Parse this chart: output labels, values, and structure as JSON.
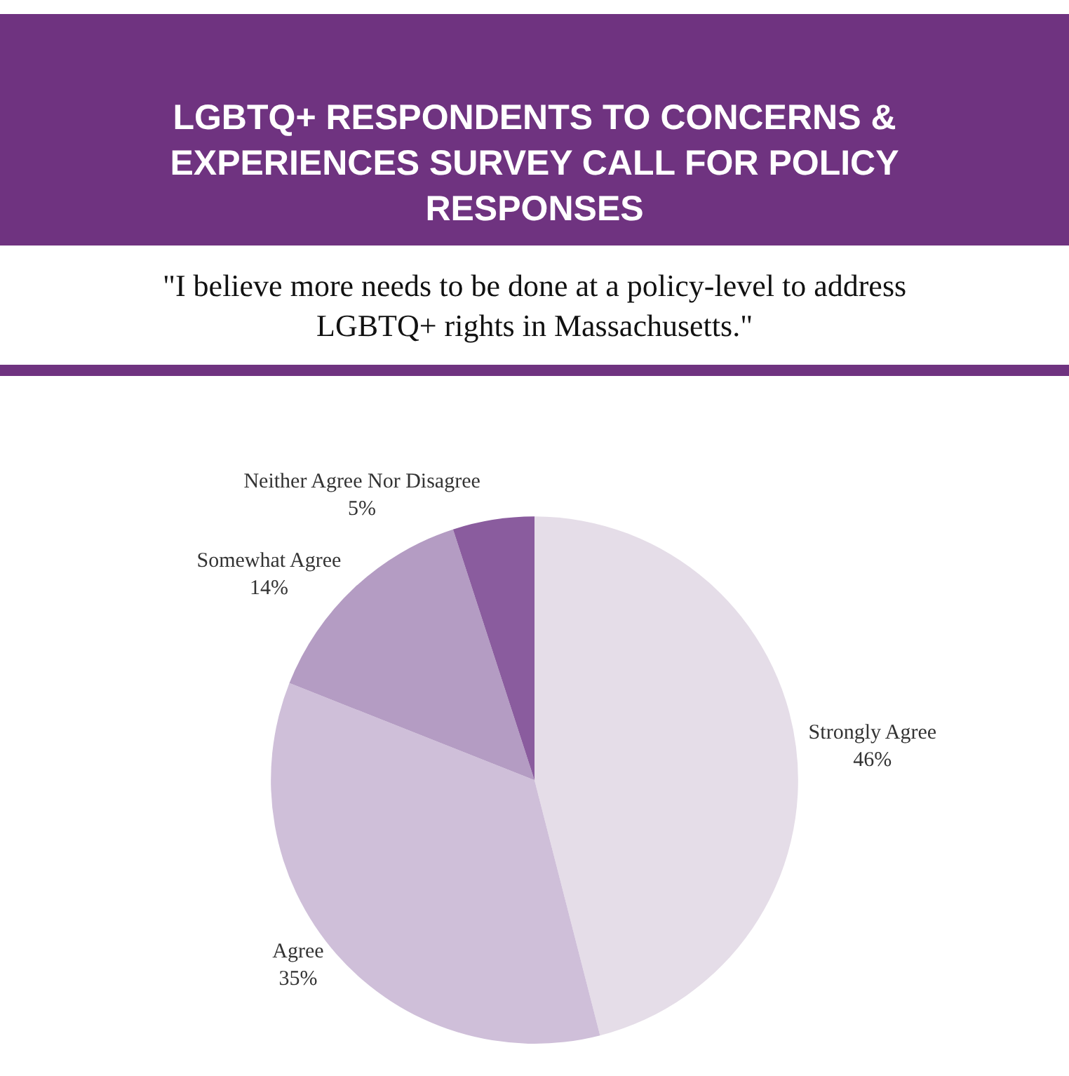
{
  "chart_data": {
    "type": "pie",
    "title": "LGBTQ+ RESPONDENTS TO CONCERNS & EXPERIENCES SURVEY CALL FOR POLICY RESPONSES",
    "subtitle": "\"I believe more needs to be done at a policy-level to address LGBTQ+ rights in Massachusetts.\"",
    "categories": [
      "Strongly Agree",
      "Agree",
      "Somewhat Agree",
      "Neither Agree Nor Disagree"
    ],
    "values": [
      46,
      35,
      14,
      5
    ],
    "value_labels": [
      "46%",
      "35%",
      "14%",
      "5%"
    ],
    "colors": [
      "#e5dde8",
      "#cfbfd9",
      "#b49cc3",
      "#8a5c9e"
    ],
    "legend": false
  }
}
